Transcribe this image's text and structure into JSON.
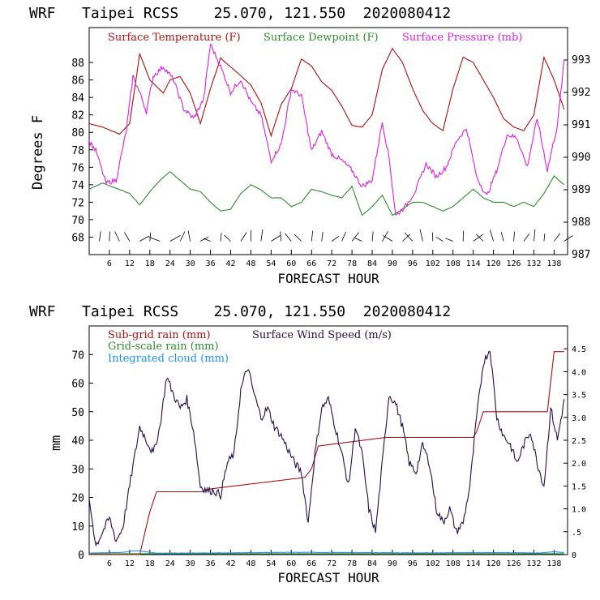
{
  "colors": {
    "axes": "#000000",
    "temperature": "#b01010",
    "dewpoint": "#2e8b2e",
    "pressure": "#dd22dd",
    "subgrid_rain": "#b01010",
    "wind_speed": "#2a0a4a",
    "gridscale_rain": "#2e8b2e",
    "cloud": "#1e90ff",
    "background": "#ffffff"
  },
  "chart_data": [
    {
      "type": "line",
      "header": "WRF   Taipei RCSS    25.070, 121.550  2020080412",
      "title": "WRF   Taipei RCSS    25.070, 121.550  2020080412",
      "xlabel": "FORECAST HOUR",
      "ylabel": "Degrees F",
      "y2label": "",
      "xlim": [
        0,
        142
      ],
      "ylim": [
        66,
        92
      ],
      "y2lim": [
        987,
        994
      ],
      "xticks": [
        "6",
        "12",
        "18",
        "24",
        "30",
        "36",
        "42",
        "48",
        "54",
        "60",
        "66",
        "72",
        "78",
        "84",
        "90",
        "96",
        "102",
        "108",
        "114",
        "120",
        "126",
        "132",
        "138"
      ],
      "yticks": [
        "68",
        "70",
        "72",
        "74",
        "76",
        "78",
        "80",
        "82",
        "84",
        "86",
        "88"
      ],
      "y2ticks": [
        "987",
        "988",
        "989",
        "990",
        "991",
        "992",
        "993"
      ],
      "legend": [
        {
          "label": "Surface Temperature (F)",
          "color": "#b01010"
        },
        {
          "label": "Surface Dewpoint (F)",
          "color": "#2e8b2e"
        },
        {
          "label": "Surface Pressure (mb)",
          "color": "#dd22dd"
        }
      ],
      "series": [
        {
          "name": "Surface Temperature (F)",
          "axis": "left",
          "color": "#b01010",
          "x": [
            0,
            4,
            9,
            12,
            15,
            18,
            22,
            24,
            27,
            30,
            33,
            36,
            39,
            42,
            45,
            48,
            51,
            54,
            57,
            60,
            63,
            66,
            69,
            72,
            75,
            78,
            81,
            84,
            87,
            90,
            93,
            96,
            99,
            102,
            105,
            108,
            111,
            114,
            117,
            120,
            123,
            126,
            129,
            132,
            135,
            138,
            141
          ],
          "y": [
            81,
            80.6,
            79.8,
            81,
            89,
            86,
            84.5,
            86,
            86.4,
            84.5,
            81,
            85,
            88.5,
            87.5,
            86.5,
            85.4,
            83.4,
            79.6,
            83.2,
            85,
            88.4,
            87.6,
            85.8,
            84.8,
            83,
            80.8,
            80.6,
            82,
            87.2,
            89.6,
            88,
            85,
            82.5,
            81,
            80.2,
            85,
            88.6,
            88,
            86,
            84,
            81.6,
            80.6,
            80.2,
            82,
            88.6,
            86,
            82.6
          ]
        },
        {
          "name": "Surface Dewpoint (F)",
          "axis": "left",
          "color": "#2e8b2e",
          "x": [
            0,
            4,
            8,
            12,
            15,
            18,
            21,
            24,
            27,
            30,
            33,
            36,
            39,
            42,
            45,
            48,
            51,
            54,
            57,
            60,
            63,
            66,
            69,
            72,
            75,
            78,
            81,
            84,
            87,
            90,
            93,
            96,
            99,
            102,
            105,
            108,
            111,
            114,
            117,
            120,
            123,
            126,
            129,
            132,
            135,
            138,
            141
          ],
          "y": [
            73.5,
            74.2,
            73.6,
            73,
            71.7,
            73.2,
            74.5,
            75.5,
            74.5,
            73.5,
            73.2,
            72,
            71,
            71.2,
            73,
            74,
            73.4,
            72.5,
            72.5,
            71.5,
            72,
            73.5,
            73.2,
            72.8,
            72.5,
            73.8,
            70.5,
            71.5,
            72.8,
            70.5,
            71.2,
            72,
            72,
            71.5,
            71,
            71.5,
            72.5,
            73.5,
            72.5,
            72,
            72,
            71.5,
            72,
            71.5,
            73,
            75,
            74
          ]
        },
        {
          "name": "Surface Pressure (mb)",
          "axis": "right",
          "color": "#dd22dd",
          "x": [
            0,
            2,
            5,
            8,
            11,
            13,
            15,
            17,
            19,
            22,
            25,
            28,
            31,
            34,
            36,
            39,
            42,
            45,
            48,
            51,
            54,
            57,
            60,
            63,
            66,
            69,
            72,
            75,
            78,
            81,
            84,
            87,
            89,
            91,
            94,
            97,
            100,
            103,
            106,
            109,
            112,
            115,
            118,
            121,
            124,
            127,
            130,
            133,
            136,
            139,
            141
          ],
          "y": [
            990.5,
            990.2,
            989.2,
            989.3,
            990.8,
            992.5,
            992,
            991.4,
            992.5,
            992.8,
            992.4,
            991.5,
            991.2,
            991.8,
            993.5,
            992.8,
            992,
            992.4,
            991.7,
            991.3,
            989.9,
            990.4,
            992.1,
            991.9,
            990.2,
            990.8,
            990.1,
            989.9,
            989.6,
            989.1,
            989.3,
            991.1,
            990,
            988.2,
            988.5,
            989,
            989.8,
            989.4,
            989.7,
            990.5,
            990.9,
            989.4,
            988.8,
            989.6,
            990.7,
            990.6,
            989.7,
            991.2,
            989.6,
            991,
            993
          ]
        }
      ],
      "wind_barbs_row": "68"
    },
    {
      "type": "line",
      "header": "WRF   Taipei RCSS    25.070, 121.550  2020080412",
      "title": "WRF   Taipei RCSS    25.070, 121.550  2020080412",
      "xlabel": "FORECAST HOUR",
      "ylabel": "mm",
      "xlim": [
        0,
        142
      ],
      "ylim": [
        0,
        80
      ],
      "y2lim": [
        0,
        5
      ],
      "xticks": [
        "6",
        "12",
        "18",
        "24",
        "30",
        "36",
        "42",
        "48",
        "54",
        "60",
        "66",
        "72",
        "78",
        "84",
        "90",
        "96",
        "102",
        "108",
        "114",
        "120",
        "126",
        "132",
        "138"
      ],
      "yticks": [
        "0",
        "10",
        "20",
        "30",
        "40",
        "50",
        "60",
        "70"
      ],
      "y2ticks": [
        "0",
        ".5",
        "1.0",
        "1.5",
        "2.0",
        "2.5",
        "3.0",
        "3.5",
        "4.0",
        "4.5"
      ],
      "legend": [
        {
          "label": "Sub-grid rain (mm)",
          "color": "#b01010"
        },
        {
          "label": "Surface Wind Speed (m/s)",
          "color": "#2a0a4a"
        },
        {
          "label": "Grid-scale rain (mm)",
          "color": "#2e8b2e"
        },
        {
          "label": "Integrated cloud (mm)",
          "color": "#1e90ff"
        }
      ],
      "series": [
        {
          "name": "Sub-grid rain (mm)",
          "axis": "left",
          "color": "#b01010",
          "x": [
            0,
            15,
            16,
            18,
            20,
            34,
            36,
            64,
            66,
            68,
            88,
            90,
            114,
            115,
            117,
            136,
            138,
            141
          ],
          "y": [
            0,
            0,
            5,
            15,
            22,
            22,
            23,
            27,
            30,
            38,
            41,
            41,
            41,
            43,
            50,
            50,
            71,
            71
          ]
        },
        {
          "name": "Surface Wind Speed (m/s)",
          "axis": "right",
          "color": "#2a0a4a",
          "x": [
            0,
            2,
            4,
            6,
            8,
            10,
            12,
            15,
            17,
            19,
            21,
            23,
            25,
            27,
            29,
            31,
            33,
            35,
            37,
            39,
            41,
            43,
            45,
            47,
            49,
            51,
            53,
            55,
            57,
            59,
            61,
            63,
            65,
            67,
            69,
            71,
            73,
            75,
            77,
            79,
            81,
            83,
            85,
            87,
            89,
            91,
            93,
            95,
            97,
            99,
            101,
            103,
            105,
            107,
            109,
            111,
            113,
            115,
            117,
            119,
            121,
            123,
            125,
            127,
            129,
            131,
            133,
            135,
            137,
            139,
            141
          ],
          "y": [
            1.2,
            0.2,
            0.5,
            0.8,
            0.3,
            0.6,
            1.5,
            2.8,
            2.5,
            2.2,
            2.8,
            3.9,
            3.5,
            3.2,
            3.4,
            2.7,
            1.5,
            1.4,
            1.4,
            1.3,
            2.0,
            2.2,
            3.6,
            4.1,
            3.5,
            3.0,
            3.2,
            2.8,
            2.6,
            2.3,
            2.0,
            1.8,
            0.7,
            2.2,
            3.2,
            3.4,
            2.8,
            2.2,
            1.5,
            2.8,
            2.2,
            1.0,
            0.5,
            2.0,
            3.5,
            3.3,
            2.8,
            2.0,
            1.8,
            2.4,
            2.0,
            1.0,
            0.7,
            1.0,
            0.5,
            0.7,
            1.5,
            3.0,
            4.2,
            4.5,
            3.0,
            2.6,
            2.4,
            2.0,
            2.4,
            2.7,
            2.0,
            1.5,
            3.2,
            2.5,
            3.4
          ]
        },
        {
          "name": "Grid-scale rain (mm)",
          "axis": "left",
          "color": "#2e8b2e",
          "x": [
            0,
            141
          ],
          "y": [
            0.3,
            0.3
          ]
        },
        {
          "name": "Integrated cloud (mm)",
          "axis": "left",
          "color": "#1e90ff",
          "x": [
            0,
            10,
            14,
            20,
            40,
            60,
            80,
            100,
            120,
            134,
            138,
            141
          ],
          "y": [
            0.5,
            0.8,
            1.4,
            0.5,
            0.6,
            0.8,
            0.7,
            0.6,
            0.7,
            0.6,
            1.0,
            0.7
          ]
        }
      ]
    }
  ]
}
